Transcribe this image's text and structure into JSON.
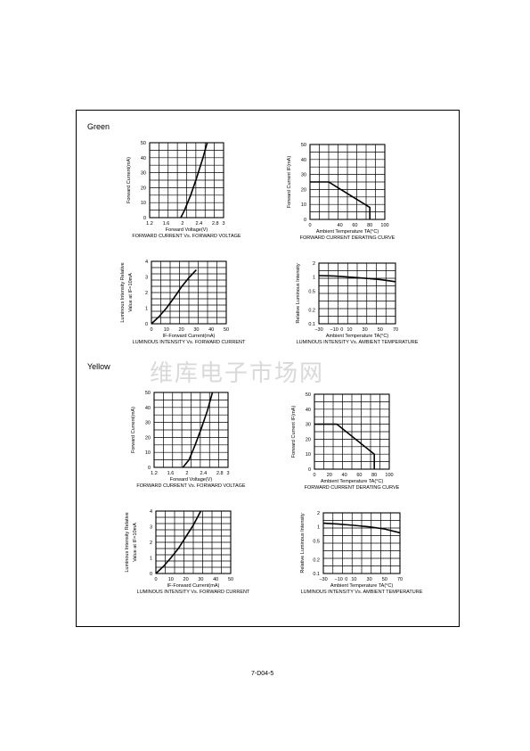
{
  "page": {
    "sections": [
      "Green",
      "Yellow"
    ],
    "watermark": "维库电子市场网",
    "footer": "7-D04-5"
  },
  "chart_data": [
    {
      "type": "line",
      "section": "Green",
      "title": "FORWARD CURRENT Vs. FORWARD VOLTAGE",
      "xlabel": "Forward Voltage(V)",
      "ylabel": "Forward Current(mA)",
      "xlim": [
        1.2,
        3.0
      ],
      "ylim": [
        0,
        50
      ],
      "xticks": [
        1.2,
        1.6,
        2.0,
        2.4,
        2.8,
        3.0
      ],
      "yticks": [
        0,
        10,
        20,
        30,
        40,
        50
      ],
      "grid": true,
      "series": [
        {
          "x": [
            1.96,
            2.05,
            2.2,
            2.35,
            2.5,
            2.6
          ],
          "y": [
            0,
            5,
            15,
            27,
            40,
            50
          ]
        }
      ]
    },
    {
      "type": "line",
      "section": "Green",
      "title": "FORWARD CURRENT DERATING CURVE",
      "xlabel": "Ambient Temperature TA(°C)",
      "ylabel": "Forward Current IF(mA)",
      "xlim": [
        0,
        100
      ],
      "ylim": [
        0,
        50
      ],
      "xticks": [
        0,
        20,
        40,
        60,
        80,
        100
      ],
      "xtick_labels": [
        "0",
        "",
        "40",
        "60",
        "80",
        "100"
      ],
      "yticks": [
        0,
        10,
        20,
        30,
        40,
        50
      ],
      "grid": true,
      "series": [
        {
          "x": [
            0,
            25,
            80,
            80
          ],
          "y": [
            25,
            25,
            8,
            0
          ]
        }
      ]
    },
    {
      "type": "line",
      "section": "Green",
      "title": "LUMINOUS INTENSITY Vs. FORWARD CURRENT",
      "xlabel": "IF-Forward Current(mA)",
      "ylabel": "Luminous Intensity Relative Value at IF=10mA",
      "xlim": [
        0,
        50
      ],
      "ylim": [
        0,
        4.0
      ],
      "xticks": [
        0,
        10,
        20,
        30,
        40,
        50
      ],
      "yticks": [
        0,
        1.0,
        2.0,
        3.0,
        4.0
      ],
      "grid": true,
      "series": [
        {
          "x": [
            0,
            5,
            10,
            15,
            20,
            25,
            30
          ],
          "y": [
            0,
            0.45,
            1.0,
            1.65,
            2.35,
            2.95,
            3.45
          ]
        }
      ]
    },
    {
      "type": "line",
      "section": "Green",
      "title": "LUMINOUS INTENSITY Vs. AMBIENT TEMPERATURE",
      "xlabel": "Ambient Temperature TA(°C)",
      "ylabel": "Relative Luminous Intensity",
      "xlim": [
        -30,
        70
      ],
      "ylim": [
        0.1,
        2
      ],
      "yscale": "log",
      "xticks": [
        -30,
        -10,
        0,
        10,
        30,
        50,
        70
      ],
      "xtick_labels": [
        "-30",
        "-10",
        "0",
        "10",
        "30",
        "50",
        "70"
      ],
      "yticks": [
        0.1,
        0.2,
        0.5,
        1,
        2
      ],
      "ytick_labels": [
        "0.1",
        "0.2",
        "0.5",
        "1",
        "2"
      ],
      "grid": true,
      "series": [
        {
          "x": [
            -30,
            -10,
            10,
            30,
            50,
            70
          ],
          "y": [
            1.08,
            1.06,
            1.0,
            0.95,
            0.89,
            0.8
          ]
        }
      ]
    },
    {
      "type": "line",
      "section": "Yellow",
      "title": "FORWARD CURRENT Vs. FORWARD VOLTAGE",
      "xlabel": "Forward Voltage(V)",
      "ylabel": "Forward Current(mA)",
      "xlim": [
        1.2,
        3.0
      ],
      "ylim": [
        0,
        50
      ],
      "xticks": [
        1.2,
        1.6,
        2.0,
        2.4,
        2.8,
        3.0
      ],
      "yticks": [
        0,
        10,
        20,
        30,
        40,
        50
      ],
      "grid": true,
      "series": [
        {
          "x": [
            1.9,
            2.05,
            2.2,
            2.35,
            2.5,
            2.62
          ],
          "y": [
            0,
            5,
            15,
            26,
            38,
            50
          ]
        }
      ]
    },
    {
      "type": "line",
      "section": "Yellow",
      "title": "FORWARD CURRENT DERATING CURVE",
      "xlabel": "Ambient Temperature TA(°C)",
      "ylabel": "Forward Current IF(mA)",
      "xlim": [
        0,
        100
      ],
      "ylim": [
        0,
        50
      ],
      "xticks": [
        0,
        20,
        40,
        60,
        80,
        100
      ],
      "xtick_labels": [
        "0",
        "20",
        "40",
        "60",
        "80",
        "100"
      ],
      "yticks": [
        0,
        10,
        20,
        30,
        40,
        50
      ],
      "grid": true,
      "series": [
        {
          "x": [
            0,
            30,
            80,
            80
          ],
          "y": [
            30,
            30,
            10,
            0
          ]
        }
      ]
    },
    {
      "type": "line",
      "section": "Yellow",
      "title": "LUMINOUS INTENSITY Vs. FORWARD CURRENT",
      "xlabel": "IF-Forward Current(mA)",
      "ylabel": "Luminous Intensity Relative Value at IF=10mA",
      "xlim": [
        0,
        50
      ],
      "ylim": [
        0,
        4.0
      ],
      "xticks": [
        0,
        10,
        20,
        30,
        40,
        50
      ],
      "yticks": [
        0,
        1.0,
        2.0,
        3.0,
        4.0
      ],
      "grid": true,
      "series": [
        {
          "x": [
            0,
            5,
            10,
            15,
            20,
            25,
            30
          ],
          "y": [
            0,
            0.45,
            1.0,
            1.6,
            2.35,
            3.1,
            4.0
          ]
        }
      ]
    },
    {
      "type": "line",
      "section": "Yellow",
      "title": "LUMINOUS INTENSITY Vs. AMBIENT TEMPERATURE",
      "xlabel": "Ambient Temperature TA(°C)",
      "ylabel": "Relative Luminous Intensity",
      "xlim": [
        -30,
        70
      ],
      "ylim": [
        0.1,
        2
      ],
      "yscale": "log",
      "xticks": [
        -30,
        -10,
        0,
        10,
        30,
        50,
        70
      ],
      "xtick_labels": [
        "-30",
        "-10",
        "0",
        "10",
        "30",
        "50",
        "70"
      ],
      "yticks": [
        0.1,
        0.2,
        0.5,
        1,
        2
      ],
      "ytick_labels": [
        "0.1",
        "0.2",
        "0.5",
        "1",
        "2"
      ],
      "grid": true,
      "series": [
        {
          "x": [
            -30,
            -10,
            10,
            30,
            50,
            70
          ],
          "y": [
            1.2,
            1.15,
            1.08,
            1.0,
            0.9,
            0.75
          ]
        }
      ]
    }
  ]
}
